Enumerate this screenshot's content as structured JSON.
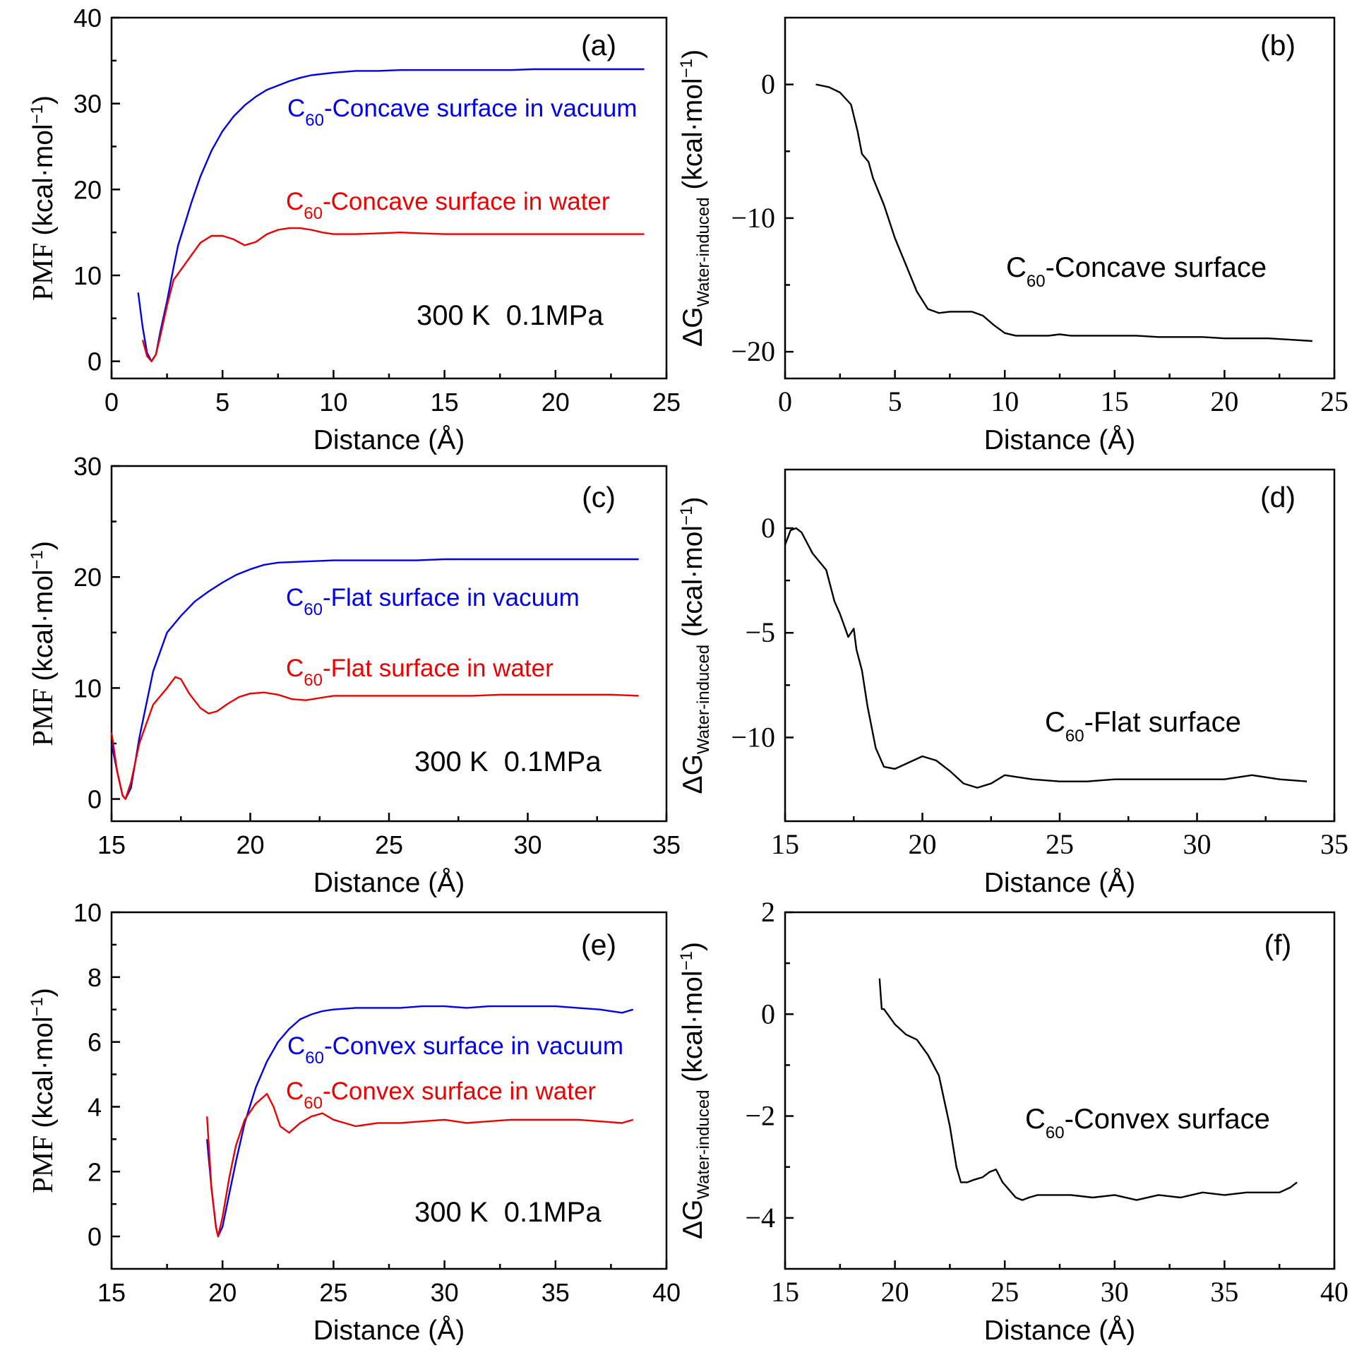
{
  "colors": {
    "vacuum": "#0000ee",
    "water": "#ee0000",
    "diff": "#000000"
  },
  "chart_data": [
    {
      "panel": "(a)",
      "type": "line",
      "xlabel": "Distance (Å)",
      "ylabel": "PMF (kcal·mol⁻¹)",
      "xlim": [
        0,
        25
      ],
      "ylim": [
        -2,
        40
      ],
      "xticks": [
        0,
        5,
        10,
        15,
        20,
        25
      ],
      "yticks": [
        0,
        10,
        20,
        30,
        40
      ],
      "condition": "300 K  0.1MPa",
      "series": [
        {
          "name": "C60-Concave surface in vacuum",
          "color": "#0000ee",
          "label_main": "C",
          "label_sub": "60",
          "label_rest": "-Concave surface in vacuum",
          "x": [
            1.2,
            1.4,
            1.6,
            1.8,
            2.0,
            2.2,
            2.5,
            2.8,
            3.0,
            3.3,
            3.6,
            4.0,
            4.5,
            5.0,
            5.5,
            6.0,
            6.5,
            7.0,
            7.5,
            8.0,
            8.5,
            9.0,
            10,
            11,
            12,
            13,
            14,
            15,
            16,
            17,
            18,
            19,
            20,
            21,
            22,
            23,
            24
          ],
          "y": [
            8,
            4,
            1,
            0,
            0.8,
            3.5,
            7,
            11,
            13.5,
            16,
            18.5,
            21.5,
            24.5,
            26.8,
            28.5,
            29.8,
            30.8,
            31.6,
            32.1,
            32.6,
            33.0,
            33.3,
            33.6,
            33.8,
            33.8,
            33.9,
            33.9,
            33.9,
            33.9,
            33.9,
            33.9,
            34.0,
            34.0,
            34.0,
            34.0,
            34.0,
            34.0
          ]
        },
        {
          "name": "C60-Concave surface in water",
          "color": "#ee0000",
          "label_main": "C",
          "label_sub": "60",
          "label_rest": "-Concave surface in water",
          "x": [
            1.4,
            1.6,
            1.8,
            2.0,
            2.2,
            2.5,
            2.8,
            3.0,
            3.5,
            4.0,
            4.5,
            5.0,
            5.5,
            6.0,
            6.5,
            7.0,
            7.5,
            8.0,
            8.5,
            9.0,
            9.5,
            10,
            11,
            12,
            13,
            14,
            15,
            16,
            17,
            18,
            19,
            20,
            21,
            22,
            23,
            24
          ],
          "y": [
            2.5,
            0.6,
            0,
            0.8,
            3,
            6.5,
            9.5,
            10.2,
            12,
            13.8,
            14.6,
            14.6,
            14.2,
            13.5,
            13.9,
            14.8,
            15.3,
            15.5,
            15.5,
            15.3,
            15.0,
            14.8,
            14.8,
            14.9,
            15.0,
            14.9,
            14.8,
            14.8,
            14.8,
            14.8,
            14.8,
            14.8,
            14.8,
            14.8,
            14.8,
            14.8
          ]
        }
      ]
    },
    {
      "panel": "(b)",
      "type": "line",
      "xlabel": "Distance (Å)",
      "ylabel": "ΔG Water-induced (kcal·mol⁻¹)",
      "xlim": [
        0,
        25
      ],
      "ylim": [
        -22,
        5
      ],
      "xticks": [
        0,
        5,
        10,
        15,
        20,
        25
      ],
      "yticks": [
        0,
        -10,
        -20
      ],
      "annotation": {
        "main": "C",
        "sub": "60",
        "rest": "-Concave surface"
      },
      "series": [
        {
          "name": "",
          "color": "#000000",
          "x": [
            1.4,
            2.0,
            2.5,
            3.0,
            3.3,
            3.5,
            3.8,
            4.0,
            4.5,
            5.0,
            5.5,
            6.0,
            6.5,
            7.0,
            7.5,
            8.0,
            8.5,
            9.0,
            9.5,
            10,
            10.5,
            11,
            12,
            12.5,
            13,
            14,
            15,
            16,
            17,
            18,
            19,
            20,
            21,
            22,
            23,
            24
          ],
          "y": [
            0,
            -0.2,
            -0.6,
            -1.5,
            -3.5,
            -5.2,
            -5.8,
            -7,
            -9,
            -11.5,
            -13.5,
            -15.5,
            -16.8,
            -17.1,
            -17.0,
            -17.0,
            -17.0,
            -17.3,
            -18.0,
            -18.6,
            -18.8,
            -18.8,
            -18.8,
            -18.7,
            -18.8,
            -18.8,
            -18.8,
            -18.8,
            -18.9,
            -18.9,
            -18.9,
            -19.0,
            -19.0,
            -19.0,
            -19.1,
            -19.2
          ]
        }
      ]
    },
    {
      "panel": "(c)",
      "type": "line",
      "xlabel": "Distance (Å)",
      "ylabel": "PMF (kcal·mol⁻¹)",
      "xlim": [
        15,
        35
      ],
      "ylim": [
        -2,
        30
      ],
      "xticks": [
        15,
        20,
        25,
        30,
        35
      ],
      "yticks": [
        0,
        10,
        20,
        30
      ],
      "condition": "300 K  0.1MPa",
      "series": [
        {
          "name": "C60-Flat surface in vacuum",
          "color": "#0000ee",
          "label_main": "C",
          "label_sub": "60",
          "label_rest": "-Flat surface in vacuum",
          "x": [
            15.0,
            15.2,
            15.4,
            15.5,
            15.7,
            16.0,
            16.5,
            17.0,
            17.5,
            18.0,
            18.5,
            19.0,
            19.5,
            20.0,
            20.5,
            21.0,
            22,
            23,
            24,
            25,
            26,
            27,
            28,
            29,
            30,
            31,
            32,
            33,
            34
          ],
          "y": [
            5,
            2.5,
            0.3,
            0,
            1,
            5.5,
            11.5,
            15,
            16.5,
            17.8,
            18.7,
            19.5,
            20.2,
            20.7,
            21.1,
            21.3,
            21.4,
            21.5,
            21.5,
            21.5,
            21.5,
            21.6,
            21.6,
            21.6,
            21.6,
            21.6,
            21.6,
            21.6,
            21.6
          ]
        },
        {
          "name": "C60-Flat surface in water",
          "color": "#ee0000",
          "label_main": "C",
          "label_sub": "60",
          "label_rest": "-Flat surface in water",
          "x": [
            15.0,
            15.2,
            15.4,
            15.5,
            15.7,
            16.0,
            16.5,
            17.0,
            17.3,
            17.5,
            17.8,
            18.2,
            18.5,
            18.8,
            19.2,
            19.6,
            20.0,
            20.5,
            21.0,
            21.5,
            22.0,
            22.5,
            23,
            24,
            25,
            26,
            27,
            28,
            29,
            30,
            31,
            32,
            33,
            34
          ],
          "y": [
            6,
            2.5,
            0.3,
            0,
            1.5,
            5,
            8.5,
            10,
            11,
            10.8,
            9.5,
            8.2,
            7.7,
            7.9,
            8.6,
            9.2,
            9.5,
            9.6,
            9.4,
            9.0,
            8.9,
            9.1,
            9.3,
            9.3,
            9.3,
            9.3,
            9.3,
            9.3,
            9.4,
            9.4,
            9.4,
            9.4,
            9.4,
            9.3
          ]
        }
      ]
    },
    {
      "panel": "(d)",
      "type": "line",
      "xlabel": "Distance (Å)",
      "ylabel": "ΔG Water-induced (kcal·mol⁻¹)",
      "xlim": [
        15,
        35
      ],
      "ylim": [
        -14,
        2.8
      ],
      "xticks": [
        15,
        20,
        25,
        30,
        35
      ],
      "yticks": [
        0,
        -5,
        -10
      ],
      "annotation": {
        "main": "C",
        "sub": "60",
        "rest": "-Flat surface"
      },
      "series": [
        {
          "name": "",
          "color": "#000000",
          "x": [
            15.0,
            15.2,
            15.4,
            15.6,
            16.0,
            16.5,
            16.8,
            17.0,
            17.3,
            17.5,
            17.6,
            17.8,
            18.0,
            18.3,
            18.6,
            19.0,
            19.5,
            20.0,
            20.5,
            21.0,
            21.5,
            22.0,
            22.5,
            23.0,
            24,
            25,
            26,
            27,
            28,
            29,
            30,
            31,
            32,
            33,
            34
          ],
          "y": [
            -0.8,
            -0.1,
            0,
            -0.2,
            -1.2,
            -2,
            -3.5,
            -4.1,
            -5.2,
            -4.8,
            -5.8,
            -6.8,
            -8.5,
            -10.5,
            -11.4,
            -11.5,
            -11.2,
            -10.9,
            -11.1,
            -11.6,
            -12.2,
            -12.4,
            -12.2,
            -11.8,
            -12.0,
            -12.1,
            -12.1,
            -12.0,
            -12.0,
            -12.0,
            -12.0,
            -12.0,
            -11.8,
            -12.0,
            -12.1
          ]
        }
      ]
    },
    {
      "panel": "(e)",
      "type": "line",
      "xlabel": "Distance (Å)",
      "ylabel": "PMF (kcal·mol⁻¹)",
      "xlim": [
        15,
        40
      ],
      "ylim": [
        -1,
        10
      ],
      "xticks": [
        15,
        20,
        25,
        30,
        35,
        40
      ],
      "yticks": [
        0,
        2,
        4,
        6,
        8,
        10
      ],
      "condition": "300 K  0.1MPa",
      "series": [
        {
          "name": "C60-Convex surface in vacuum",
          "color": "#0000ee",
          "label_main": "C",
          "label_sub": "60",
          "label_rest": "-Convex surface in vacuum",
          "x": [
            19.3,
            19.5,
            19.7,
            19.8,
            20.0,
            20.3,
            20.6,
            21.0,
            21.5,
            22.0,
            22.5,
            23.0,
            23.5,
            24.0,
            24.5,
            25.0,
            26,
            27,
            28,
            29,
            30,
            31,
            32,
            33,
            34,
            35,
            36,
            37,
            38,
            38.5
          ],
          "y": [
            3,
            1.5,
            0.3,
            0,
            0.3,
            1.3,
            2.3,
            3.5,
            4.6,
            5.4,
            6.0,
            6.4,
            6.7,
            6.85,
            6.95,
            7.0,
            7.05,
            7.05,
            7.05,
            7.1,
            7.1,
            7.05,
            7.1,
            7.1,
            7.1,
            7.1,
            7.05,
            7.0,
            6.9,
            7.0
          ]
        },
        {
          "name": "C60-Convex surface in water",
          "color": "#ee0000",
          "label_main": "C",
          "label_sub": "60",
          "label_rest": "-Convex surface in water",
          "x": [
            19.3,
            19.5,
            19.7,
            19.8,
            20.0,
            20.3,
            20.6,
            21.0,
            21.5,
            22.0,
            22.3,
            22.6,
            23.0,
            23.5,
            24.0,
            24.5,
            25.0,
            25.5,
            26.0,
            27,
            28,
            29,
            30,
            31,
            32,
            33,
            34,
            35,
            36,
            37,
            38,
            38.5
          ],
          "y": [
            3.7,
            1.5,
            0.3,
            0,
            0.6,
            1.8,
            2.8,
            3.6,
            4.1,
            4.4,
            4.0,
            3.4,
            3.2,
            3.5,
            3.7,
            3.8,
            3.6,
            3.5,
            3.4,
            3.5,
            3.5,
            3.55,
            3.6,
            3.5,
            3.55,
            3.6,
            3.6,
            3.6,
            3.6,
            3.55,
            3.5,
            3.6
          ]
        }
      ]
    },
    {
      "panel": "(f)",
      "type": "line",
      "xlabel": "Distance (Å)",
      "ylabel": "ΔG Water-induced (kcal·mol⁻¹)",
      "xlim": [
        15,
        40
      ],
      "ylim": [
        -5,
        2
      ],
      "xticks": [
        15,
        20,
        25,
        30,
        35,
        40
      ],
      "yticks": [
        2,
        0,
        -2,
        -4
      ],
      "annotation": {
        "main": "C",
        "sub": "60",
        "rest": "-Convex surface"
      },
      "series": [
        {
          "name": "",
          "color": "#000000",
          "x": [
            19.3,
            19.4,
            19.5,
            20.0,
            20.5,
            21.0,
            21.5,
            22.0,
            22.5,
            22.8,
            23.0,
            23.3,
            23.6,
            24.0,
            24.3,
            24.6,
            24.9,
            25.2,
            25.5,
            25.8,
            26.1,
            26.5,
            27,
            28,
            29,
            30,
            31,
            32,
            33,
            34,
            35,
            36,
            37,
            37.5,
            38,
            38.3
          ],
          "y": [
            0.7,
            0.1,
            0.1,
            -0.2,
            -0.4,
            -0.5,
            -0.8,
            -1.2,
            -2.2,
            -3.0,
            -3.3,
            -3.3,
            -3.25,
            -3.2,
            -3.1,
            -3.05,
            -3.3,
            -3.45,
            -3.6,
            -3.65,
            -3.6,
            -3.55,
            -3.55,
            -3.55,
            -3.6,
            -3.55,
            -3.65,
            -3.55,
            -3.6,
            -3.5,
            -3.55,
            -3.5,
            -3.5,
            -3.5,
            -3.4,
            -3.3
          ]
        }
      ]
    }
  ]
}
